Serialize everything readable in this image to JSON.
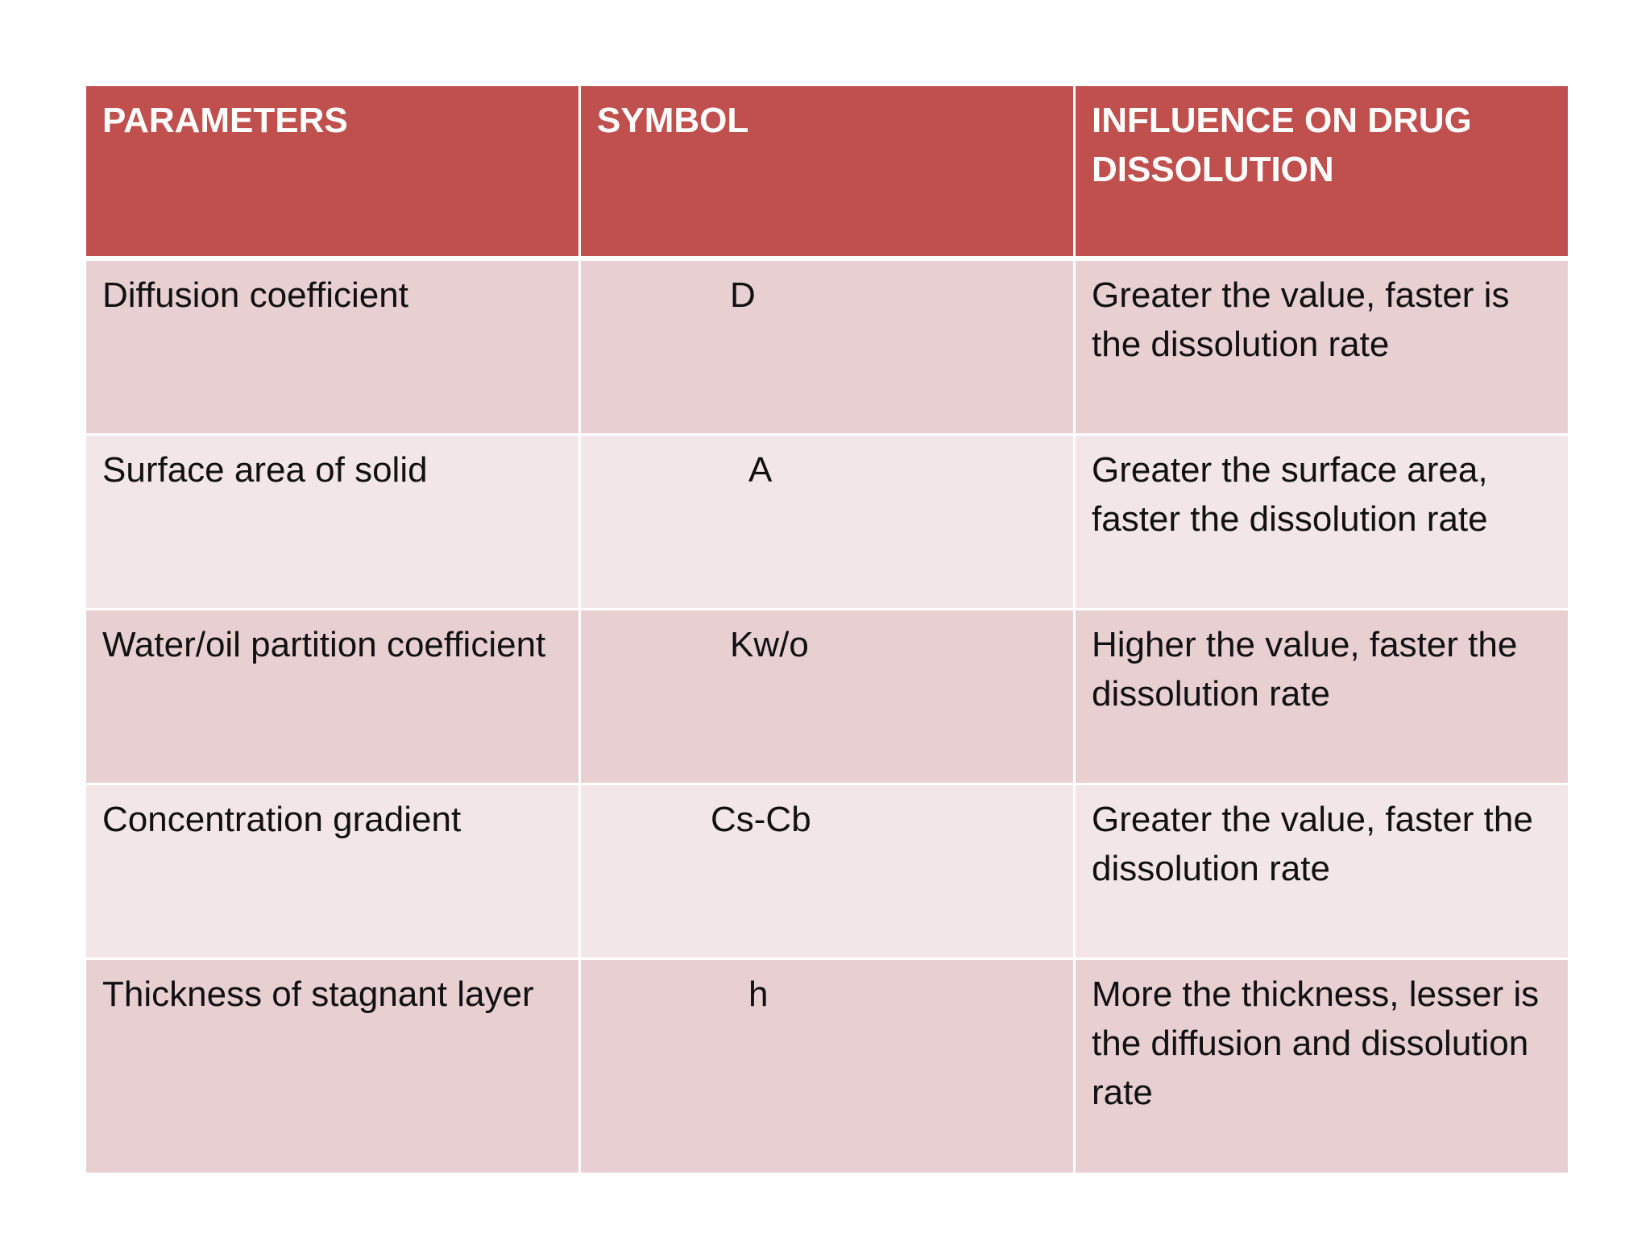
{
  "table": {
    "headers": {
      "parameters": "PARAMETERS",
      "symbol": "SYMBOL",
      "influence": "INFLUENCE ON DRUG DISSOLUTION"
    },
    "rows": [
      {
        "parameter": "Diffusion coefficient",
        "symbol": "D",
        "influence": "Greater the value, faster is the dissolution rate"
      },
      {
        "parameter": "Surface area of solid",
        "symbol": "A",
        "influence": "Greater the surface area, faster the dissolution rate"
      },
      {
        "parameter": "Water/oil partition coefficient",
        "symbol": "Kw/o",
        "influence": "Higher the value, faster the dissolution rate"
      },
      {
        "parameter": "Concentration gradient",
        "symbol": "Cs-Cb",
        "influence": "Greater the value, faster the dissolution rate"
      },
      {
        "parameter": "Thickness of stagnant layer",
        "symbol": "h",
        "influence": "More the thickness, lesser is the diffusion and dissolution rate"
      }
    ]
  },
  "colors": {
    "header_bg": "#c0504d",
    "row_odd_bg": "#e8cfd2",
    "row_even_bg": "#f3e6e8"
  }
}
